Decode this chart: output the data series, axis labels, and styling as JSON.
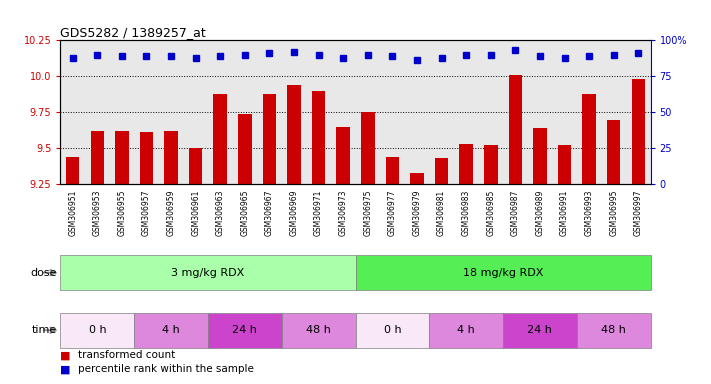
{
  "title": "GDS5282 / 1389257_at",
  "samples": [
    "GSM306951",
    "GSM306953",
    "GSM306955",
    "GSM306957",
    "GSM306959",
    "GSM306961",
    "GSM306963",
    "GSM306965",
    "GSM306967",
    "GSM306969",
    "GSM306971",
    "GSM306973",
    "GSM306975",
    "GSM306977",
    "GSM306979",
    "GSM306981",
    "GSM306983",
    "GSM306985",
    "GSM306987",
    "GSM306989",
    "GSM306991",
    "GSM306993",
    "GSM306995",
    "GSM306997"
  ],
  "bar_values": [
    9.44,
    9.62,
    9.62,
    9.61,
    9.62,
    9.5,
    9.88,
    9.74,
    9.88,
    9.94,
    9.9,
    9.65,
    9.75,
    9.44,
    9.33,
    9.43,
    9.53,
    9.52,
    10.01,
    9.64,
    9.52,
    9.88,
    9.7,
    9.98
  ],
  "percentile_values": [
    88,
    90,
    89,
    89,
    89,
    88,
    89,
    90,
    91,
    92,
    90,
    88,
    90,
    89,
    86,
    88,
    90,
    90,
    93,
    89,
    88,
    89,
    90,
    91
  ],
  "bar_color": "#cc0000",
  "dot_color": "#0000cc",
  "ylim_left": [
    9.25,
    10.25
  ],
  "ylim_right": [
    0,
    100
  ],
  "yticks_left": [
    9.25,
    9.5,
    9.75,
    10.0,
    10.25
  ],
  "yticks_right": [
    0,
    25,
    50,
    75,
    100
  ],
  "ytick_labels_right": [
    "0",
    "25",
    "50",
    "75",
    "100%"
  ],
  "dose_groups": [
    {
      "label": "3 mg/kg RDX",
      "start": 0,
      "end": 12,
      "color": "#aaffaa"
    },
    {
      "label": "18 mg/kg RDX",
      "start": 12,
      "end": 24,
      "color": "#55ee55"
    }
  ],
  "time_groups": [
    {
      "label": "0 h",
      "start": 0,
      "end": 3,
      "color": "#f8e8f8"
    },
    {
      "label": "4 h",
      "start": 3,
      "end": 6,
      "color": "#dd88dd"
    },
    {
      "label": "24 h",
      "start": 6,
      "end": 9,
      "color": "#cc44cc"
    },
    {
      "label": "48 h",
      "start": 9,
      "end": 12,
      "color": "#dd88dd"
    },
    {
      "label": "0 h",
      "start": 12,
      "end": 15,
      "color": "#f8e8f8"
    },
    {
      "label": "4 h",
      "start": 15,
      "end": 18,
      "color": "#dd88dd"
    },
    {
      "label": "24 h",
      "start": 18,
      "end": 21,
      "color": "#cc44cc"
    },
    {
      "label": "48 h",
      "start": 21,
      "end": 24,
      "color": "#dd88dd"
    }
  ],
  "legend_bar_label": "transformed count",
  "legend_dot_label": "percentile rank within the sample",
  "dose_label": "dose",
  "time_label": "time",
  "bg_color": "#ffffff",
  "plot_bg_color": "#e8e8e8",
  "xtick_bg_color": "#d8d8d8"
}
